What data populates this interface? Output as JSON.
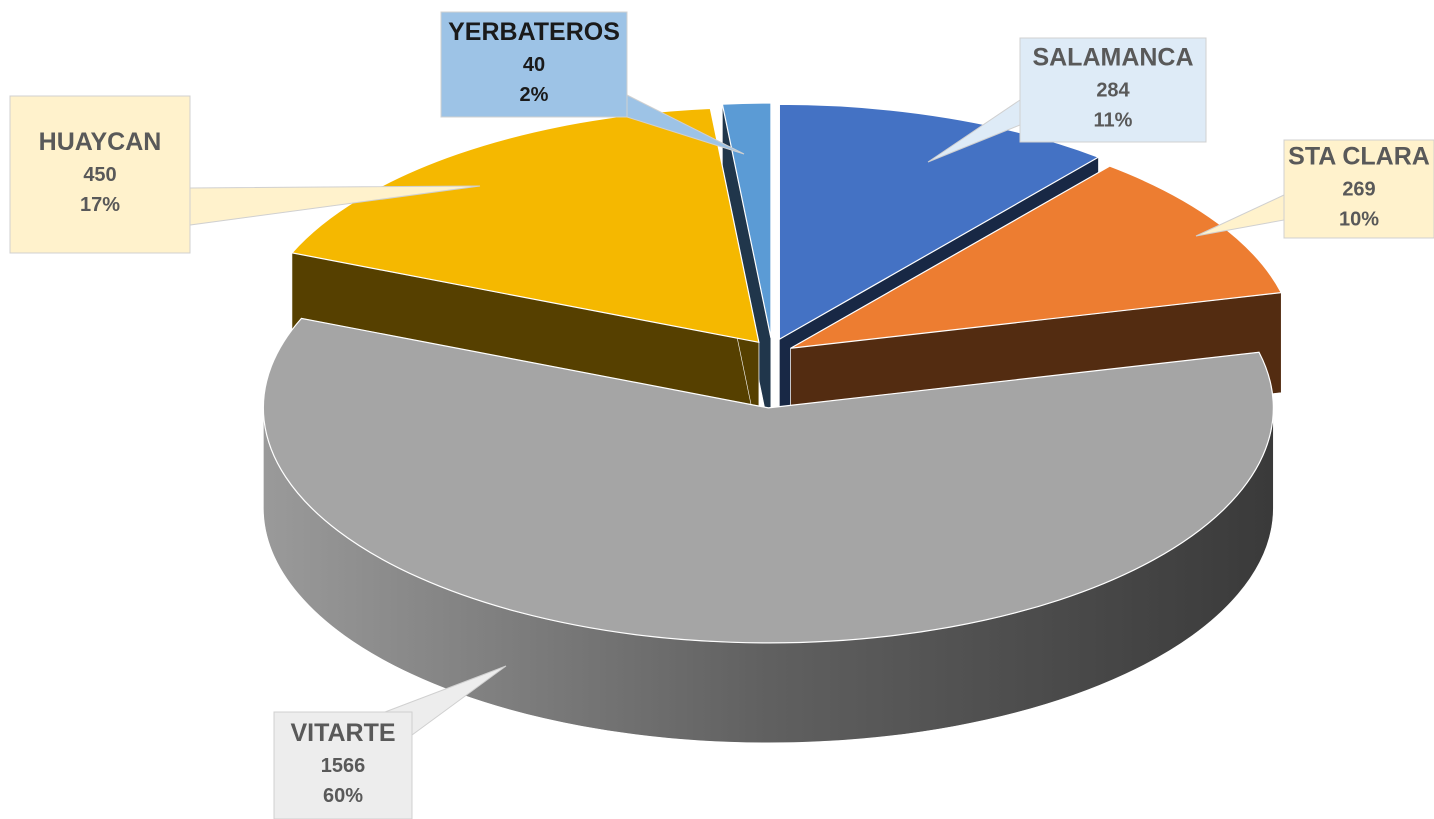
{
  "chart_data": {
    "type": "pie3d",
    "categories": [
      "SALAMANCA",
      "STA CLARA",
      "VITARTE",
      "HUAYCAN",
      "YERBATEROS"
    ],
    "values": [
      284,
      269,
      1566,
      450,
      40
    ],
    "percent_labels": [
      "11%",
      "10%",
      "60%",
      "17%",
      "2%"
    ],
    "colors": [
      "#4472c4",
      "#ed7d31",
      "#a5a5a5",
      "#f5b800",
      "#5b9bd5"
    ]
  }
}
